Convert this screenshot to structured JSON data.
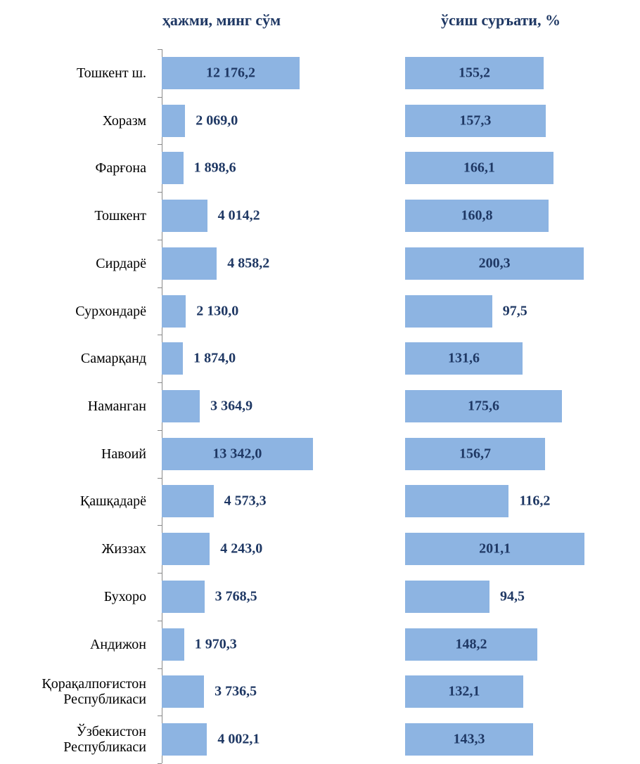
{
  "chart_data": [
    {
      "type": "hbar",
      "title": "ҳажми, минг сўм",
      "categories": [
        "Тошкент ш.",
        "Хоразм",
        "Фарғона",
        "Тошкент",
        "Сирдарё",
        "Сурхондарё",
        "Самарқанд",
        "Наманган",
        "Навоий",
        "Қашқадарё",
        "Жиззах",
        "Бухоро",
        "Андижон",
        "Қорақалпоғистон\nРеспубликаси",
        "Ўзбекистон\nРеспубликаси"
      ],
      "values": [
        12176.2,
        2069.0,
        1898.6,
        4014.2,
        4858.2,
        2130.0,
        1874.0,
        3364.9,
        13342.0,
        4573.3,
        4243.0,
        3768.5,
        1970.3,
        3736.5,
        4002.1
      ],
      "value_labels": [
        "12 176,2",
        "2 069,0",
        "1 898,6",
        "4 014,2",
        "4 858,2",
        "2 130,0",
        "1 874,0",
        "3 364,9",
        "13 342,0",
        "4 573,3",
        "4 243,0",
        "3 768,5",
        "1 970,3",
        "3 736,5",
        "4 002,1"
      ],
      "color": "#8db4e2",
      "xlim": [
        0,
        20000
      ]
    },
    {
      "type": "hbar",
      "title": "ўсиш суръати, %",
      "values": [
        155.2,
        157.3,
        166.1,
        160.8,
        200.3,
        97.5,
        131.6,
        175.6,
        156.7,
        116.2,
        201.1,
        94.5,
        148.2,
        132.1,
        143.3
      ],
      "value_labels": [
        "155,2",
        "157,3",
        "166,1",
        "160,8",
        "200,3",
        "97,5",
        "131,6",
        "175,6",
        "156,7",
        "116,2",
        "201,1",
        "94,5",
        "148,2",
        "132,1",
        "143,3"
      ],
      "color": "#8db4e2",
      "xlim": [
        0,
        260
      ]
    }
  ]
}
